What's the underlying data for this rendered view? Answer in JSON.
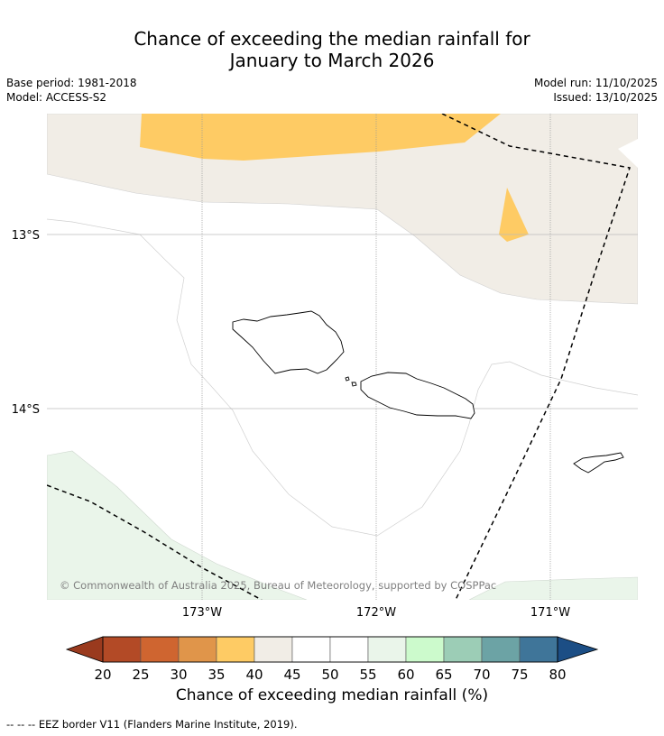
{
  "title_line1": "Chance of exceeding the median rainfall for",
  "title_line2": "January to March 2026",
  "base_period": "Base period: 1981-2018",
  "model": "Model: ACCESS-S2",
  "model_run": "Model run: 11/10/2025",
  "issued": "Issued: 13/10/2025",
  "lat_labels": [
    "13°S",
    "14°S"
  ],
  "lon_labels": [
    "173°W",
    "172°W",
    "171°W"
  ],
  "copyright": "© Commonwealth of Australia 2025, Bureau of Meteorology, supported by COSPPac",
  "colorbar": {
    "label": "Chance of exceeding median rainfall (%)",
    "ticks": [
      "20",
      "25",
      "30",
      "35",
      "40",
      "45",
      "50",
      "55",
      "60",
      "65",
      "70",
      "75",
      "80"
    ],
    "under_color": "#9a3a1e",
    "over_color": "#1c4e85",
    "colors": [
      "#b34a26",
      "#cf6530",
      "#e0954a",
      "#fecb64",
      "#f1ede6",
      "#ffffff",
      "#ffffff",
      "#eaf5ea",
      "#ccfacc",
      "#9ccdb6",
      "#6ca3a5",
      "#3f7599"
    ]
  },
  "fills": {
    "orange": "#fecb64",
    "beige": "#f1ede6",
    "green": "#eaf5ea"
  },
  "footnote": "--  --  -- EEZ border V11 (Flanders Marine Institute, 2019)."
}
